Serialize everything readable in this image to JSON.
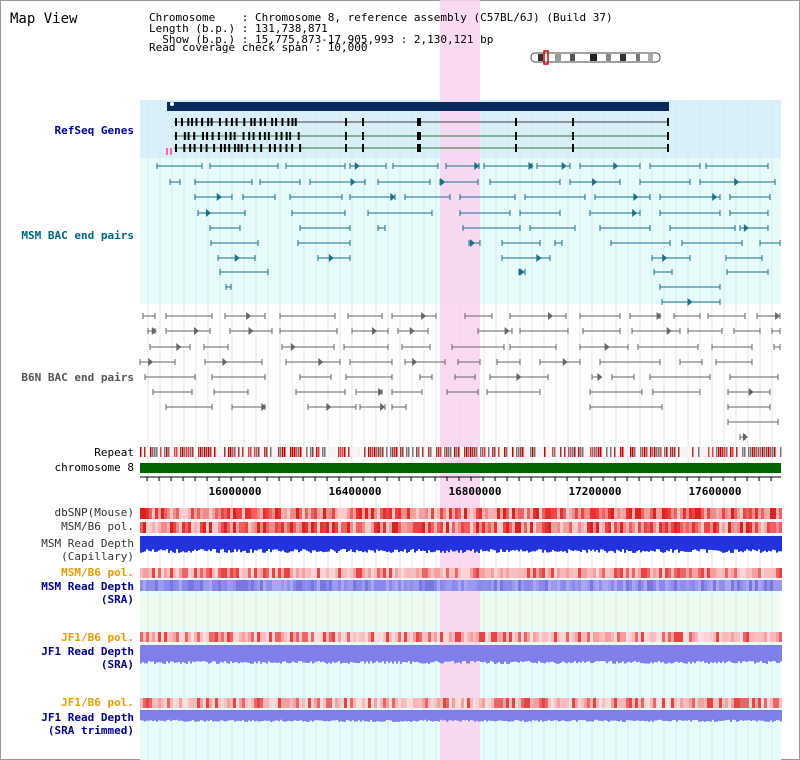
{
  "title": "Map View",
  "info": {
    "line1": "Chromosome    : Chromosome 8, reference assembly (C57BL/6J) (Build 37)",
    "line2": "Length (b.p.) : 131,738,871",
    "line3": "  Show (b.p.) : 15,775,873-17,905,993 : 2,130,121 bp",
    "line4": "Read coverage check span : 10,000"
  },
  "axis_ticks": [
    "16000000",
    "16400000",
    "16800000",
    "17200000",
    "17600000"
  ],
  "tracks": {
    "refseq": "RefSeq Genes",
    "msm_bac": "MSM BAC end pairs",
    "b6n_bac": "B6N BAC end pairs",
    "repeat": "Repeat",
    "chromosome": "chromosome 8",
    "dbsnp": "dbSNP(Mouse)",
    "msm_b6_pol": "MSM/B6 pol.",
    "msm_depth_cap_1": "MSM Read Depth",
    "msm_depth_cap_2": "(Capillary)",
    "msm_b6_pol_sra": "MSM/B6 pol.",
    "msm_depth_sra_1": "MSM Read Depth",
    "msm_depth_sra_2": "(SRA)",
    "jf1_b6_pol": "JF1/B6 pol.",
    "jf1_depth_sra_1": "JF1 Read Depth",
    "jf1_depth_sra_2": "(SRA)",
    "jf1_b6_pol_tr": "JF1/B6 pol.",
    "jf1_depth_tr_1": "JF1 Read Depth",
    "jf1_depth_tr_2": "(SRA trimmed)"
  },
  "colors": {
    "navy_label": "#000099",
    "teal_label": "#006688",
    "gray_label": "#555555",
    "orange_label": "#ee9900",
    "highlight": "#f9d4f0",
    "refseq_bg": "#d9f0fb",
    "lane_bg": "#e8fbfb",
    "chromosome_bar": "#006600",
    "depth_blue": "#2233dd",
    "depth_light": "#8080ee"
  }
}
